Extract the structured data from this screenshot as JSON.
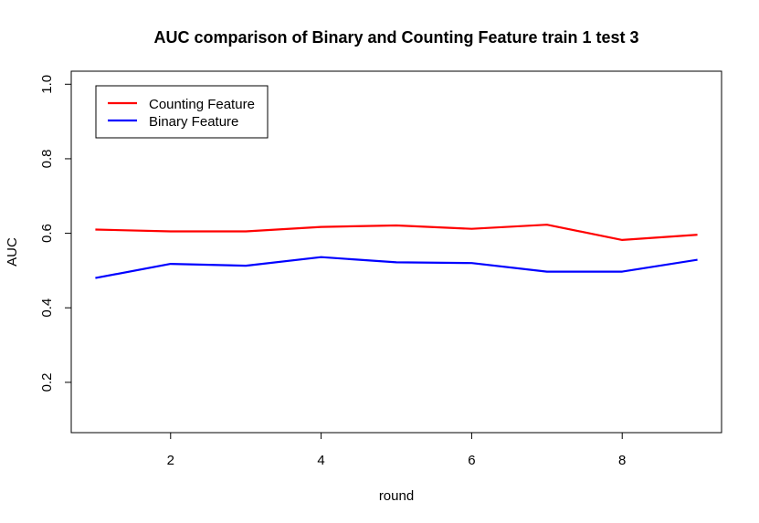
{
  "chart_data": {
    "type": "line",
    "title": "AUC comparison of Binary and Counting Feature train 1 test 3",
    "xlabel": "round",
    "ylabel": "AUC",
    "xlim": [
      0.68,
      9.32
    ],
    "ylim": [
      0.065,
      1.035
    ],
    "xticks": [
      2,
      4,
      6,
      8
    ],
    "yticks": [
      0.2,
      0.4,
      0.6,
      0.8,
      1.0
    ],
    "xtick_labels": [
      "2",
      "4",
      "6",
      "8"
    ],
    "ytick_labels": [
      "0.2",
      "0.4",
      "0.6",
      "0.8",
      "1.0"
    ],
    "grid": false,
    "legend_position": "top-left",
    "x": [
      1,
      2,
      3,
      4,
      5,
      6,
      7,
      8,
      9
    ],
    "series": [
      {
        "name": "Counting Feature",
        "color": "#ff0000",
        "values": [
          0.61,
          0.605,
          0.605,
          0.617,
          0.621,
          0.612,
          0.623,
          0.582,
          0.596
        ]
      },
      {
        "name": "Binary Feature",
        "color": "#0000ff",
        "values": [
          0.48,
          0.518,
          0.513,
          0.536,
          0.522,
          0.52,
          0.497,
          0.497,
          0.529
        ]
      }
    ]
  }
}
